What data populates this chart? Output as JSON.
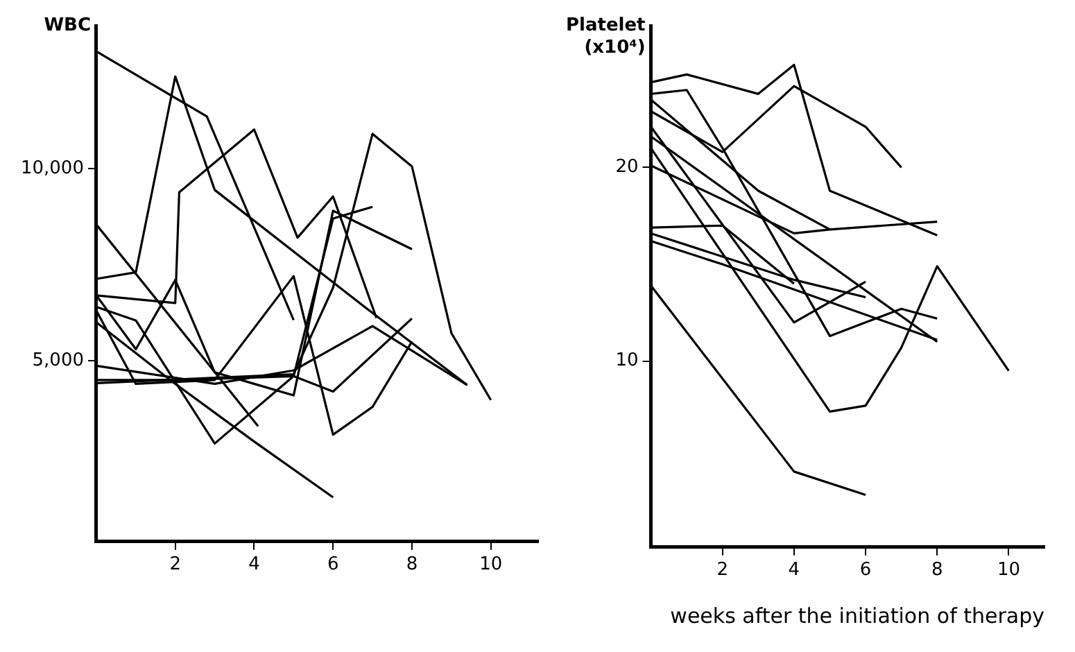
{
  "chart_data": [
    {
      "type": "line",
      "ylabel": "WBC",
      "color": "#000000",
      "grid": false,
      "legend": false,
      "marker": "none",
      "xlim": [
        0,
        11.2
      ],
      "xticks": [
        2,
        4,
        6,
        8,
        10
      ],
      "ylim": [
        300,
        13700
      ],
      "yticks": [
        {
          "value": 5000,
          "label": "5,000"
        },
        {
          "value": 10000,
          "label": "10,000"
        }
      ],
      "series": [
        {
          "x": [
            0,
            2.8,
            5
          ],
          "values": [
            13040,
            11350,
            6060
          ]
        },
        {
          "x": [
            0,
            1,
            2,
            3,
            6.8,
            9.4
          ],
          "values": [
            7130,
            7300,
            12390,
            9440,
            6400,
            4370
          ]
        },
        {
          "x": [
            0,
            4.1
          ],
          "values": [
            8540,
            3300
          ]
        },
        {
          "x": [
            0,
            2,
            2.1,
            4,
            5.1,
            6,
            7.1
          ],
          "values": [
            6700,
            6500,
            9380,
            11010,
            8200,
            9270,
            6110
          ]
        },
        {
          "x": [
            0,
            5,
            6,
            7,
            8,
            9,
            10
          ],
          "values": [
            4420,
            4650,
            6900,
            10900,
            10050,
            5720,
            3980
          ]
        },
        {
          "x": [
            0,
            1,
            3,
            5,
            6,
            7
          ],
          "values": [
            6400,
            6050,
            2850,
            4600,
            8700,
            9000
          ]
        },
        {
          "x": [
            0,
            2,
            4,
            6
          ],
          "values": [
            6000,
            4400,
            2900,
            1450
          ]
        },
        {
          "x": [
            0,
            3,
            5,
            7,
            9.4
          ],
          "values": [
            4870,
            4400,
            4750,
            5900,
            4370
          ]
        },
        {
          "x": [
            0,
            2,
            5,
            6,
            8
          ],
          "values": [
            4500,
            4500,
            4600,
            4200,
            6100
          ]
        },
        {
          "x": [
            0,
            1,
            2,
            3,
            4,
            5,
            6,
            8
          ],
          "values": [
            6700,
            5300,
            7100,
            4700,
            4400,
            4100,
            8900,
            7900
          ]
        },
        {
          "x": [
            0,
            1,
            3,
            5,
            6,
            7,
            8
          ],
          "values": [
            6300,
            4400,
            4500,
            7200,
            3080,
            3800,
            5500
          ]
        }
      ]
    },
    {
      "type": "line",
      "ylabel": "Platelet (x10⁴)",
      "xlabel": "weeks after the initiation of therapy",
      "color": "#000000",
      "grid": false,
      "legend": false,
      "marker": "none",
      "xlim": [
        0,
        11
      ],
      "xticks": [
        2,
        4,
        6,
        8,
        10
      ],
      "ylim": [
        0.4,
        27.3
      ],
      "yticks": [
        10,
        20
      ],
      "series": [
        {
          "x": [
            0,
            1,
            3,
            4,
            5,
            8
          ],
          "values": [
            24.4,
            24.8,
            23.8,
            25.3,
            18.8,
            16.5
          ]
        },
        {
          "x": [
            0,
            2,
            4,
            6,
            7
          ],
          "values": [
            22.9,
            20.8,
            24.2,
            22.1,
            20
          ]
        },
        {
          "x": [
            0,
            1,
            2,
            5,
            6,
            7,
            8
          ],
          "values": [
            23.8,
            24,
            21,
            11.3,
            12,
            12.7,
            12.2
          ]
        },
        {
          "x": [
            0,
            3,
            5
          ],
          "values": [
            23.5,
            18.8,
            16.8
          ]
        },
        {
          "x": [
            0,
            4,
            5,
            8
          ],
          "values": [
            20.1,
            16.6,
            16.8,
            17.2
          ]
        },
        {
          "x": [
            0,
            4,
            6
          ],
          "values": [
            22.1,
            12,
            14.1
          ]
        },
        {
          "x": [
            0,
            8
          ],
          "values": [
            21.6,
            11
          ]
        },
        {
          "x": [
            0,
            5,
            6,
            7,
            8,
            10
          ],
          "values": [
            21,
            7.4,
            7.7,
            10.7,
            14.9,
            9.5
          ]
        },
        {
          "x": [
            0,
            2,
            4
          ],
          "values": [
            16.9,
            17,
            14
          ]
        },
        {
          "x": [
            0,
            4,
            6
          ],
          "values": [
            16.6,
            14.2,
            13.3
          ]
        },
        {
          "x": [
            0,
            2,
            8
          ],
          "values": [
            16.2,
            15,
            11.1
          ]
        },
        {
          "x": [
            0,
            4,
            6
          ],
          "values": [
            13.9,
            4.3,
            3.1
          ]
        }
      ]
    }
  ]
}
